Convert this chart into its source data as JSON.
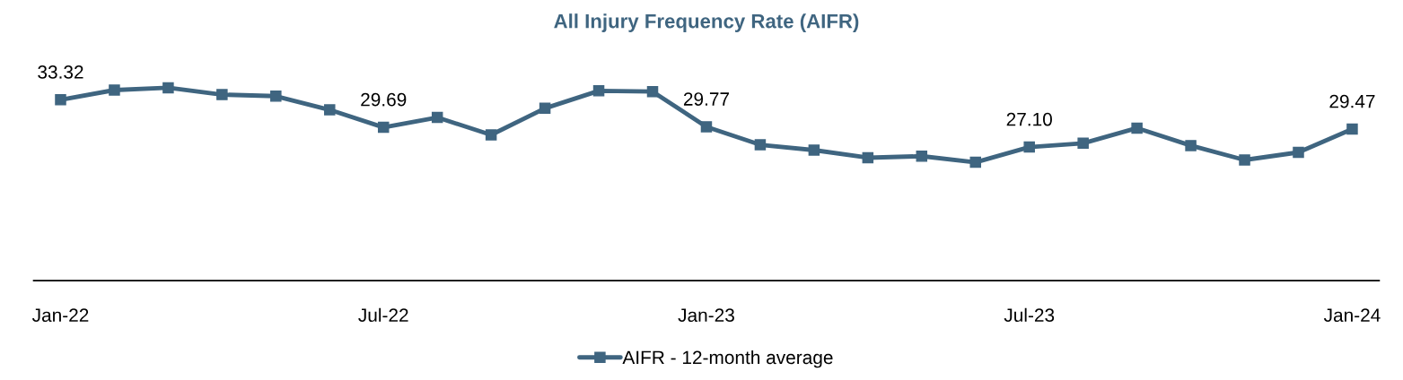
{
  "chart_data": {
    "type": "line",
    "title": "All Injury Frequency Rate (AIFR)",
    "categories": [
      "Jan-22",
      null,
      null,
      null,
      null,
      null,
      "Jul-22",
      null,
      null,
      null,
      null,
      null,
      "Jan-23",
      null,
      null,
      null,
      null,
      null,
      "Jul-23",
      null,
      null,
      null,
      null,
      null,
      "Jan-24"
    ],
    "series": [
      {
        "name": "AIFR - 12-month average",
        "color": "#3f6580",
        "values": [
          33.32,
          34.6,
          34.9,
          34.0,
          33.8,
          32.0,
          29.69,
          31.0,
          28.7,
          32.2,
          34.5,
          34.4,
          29.77,
          27.4,
          26.7,
          25.7,
          25.9,
          25.1,
          27.1,
          27.6,
          29.6,
          27.3,
          25.4,
          26.4,
          29.47
        ],
        "value_labels": [
          "33.32",
          null,
          null,
          null,
          null,
          null,
          "29.69",
          null,
          null,
          null,
          null,
          null,
          "29.77",
          null,
          null,
          null,
          null,
          null,
          "27.10",
          null,
          null,
          null,
          null,
          null,
          "29.47"
        ]
      }
    ],
    "tick_labels": "x",
    "grid": false,
    "legend": "bottom",
    "marker": "square",
    "line_style": "solid"
  }
}
